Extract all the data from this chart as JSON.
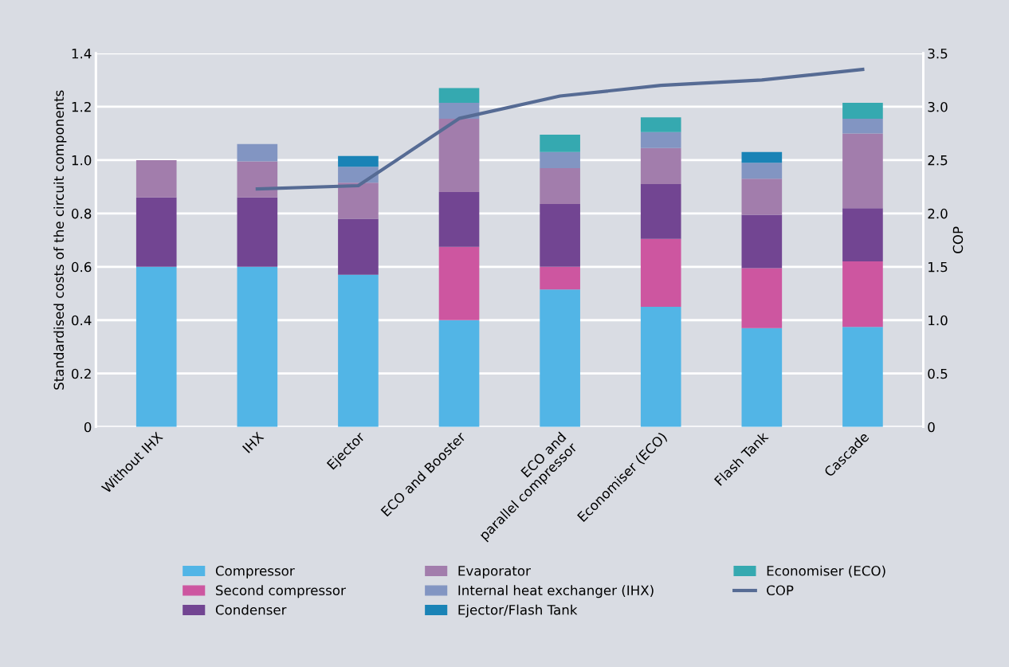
{
  "chart_data": {
    "type": "bar",
    "stacked": true,
    "ylabel": "Standardised costs of the circuit components",
    "y2label": "COP",
    "categories": [
      "Without IHX",
      "IHX",
      "Ejector",
      "ECO and Booster",
      "ECO and\nparallel compressor",
      "Economiser (ECO)",
      "Flash Tank",
      "Cascade"
    ],
    "series": [
      {
        "name": "Compressor",
        "color": "#52b5e6",
        "values": [
          0.6,
          0.6,
          0.57,
          0.4,
          0.515,
          0.45,
          0.37,
          0.375
        ]
      },
      {
        "name": "Second compressor",
        "color": "#cd56a0",
        "values": [
          0,
          0,
          0,
          0.275,
          0.085,
          0.255,
          0.225,
          0.245
        ]
      },
      {
        "name": "Condenser",
        "color": "#724592",
        "values": [
          0.26,
          0.26,
          0.21,
          0.205,
          0.235,
          0.205,
          0.2,
          0.2
        ]
      },
      {
        "name": "Evaporator",
        "color": "#a27dac",
        "values": [
          0.14,
          0.135,
          0.135,
          0.275,
          0.135,
          0.135,
          0.135,
          0.28
        ]
      },
      {
        "name": "Internal heat exchanger (IHX)",
        "color": "#8295c2",
        "values": [
          0,
          0.065,
          0.06,
          0.06,
          0.06,
          0.06,
          0.06,
          0.055
        ]
      },
      {
        "name": "Ejector/Flash Tank",
        "color": "#1a83b6",
        "values": [
          0,
          0,
          0.04,
          0,
          0,
          0,
          0.04,
          0
        ]
      },
      {
        "name": "Economiser (ECO)",
        "color": "#35a9b0",
        "values": [
          0,
          0,
          0,
          0.055,
          0.065,
          0.055,
          0,
          0.06
        ]
      },
      {
        "name": "COP",
        "type": "line",
        "axis": "y2",
        "color": "#566b94",
        "values": [
          null,
          2.23,
          2.26,
          2.89,
          3.1,
          3.2,
          3.25,
          3.35
        ]
      }
    ],
    "ylim": [
      0,
      1.4
    ],
    "yticks": [
      0,
      0.2,
      0.4,
      0.6,
      0.8,
      {
        "value": 1,
        "label": "1.0"
      },
      1.2,
      1.4
    ],
    "y2lim": [
      0,
      3.5
    ],
    "y2ticks": [
      0,
      0.5,
      {
        "value": 1,
        "label": "1.0"
      },
      1.5,
      {
        "value": 2,
        "label": "2.0"
      },
      2.5,
      {
        "value": 3,
        "label": "3.0"
      },
      3.5
    ],
    "grid": "y",
    "legend": "bottom"
  }
}
